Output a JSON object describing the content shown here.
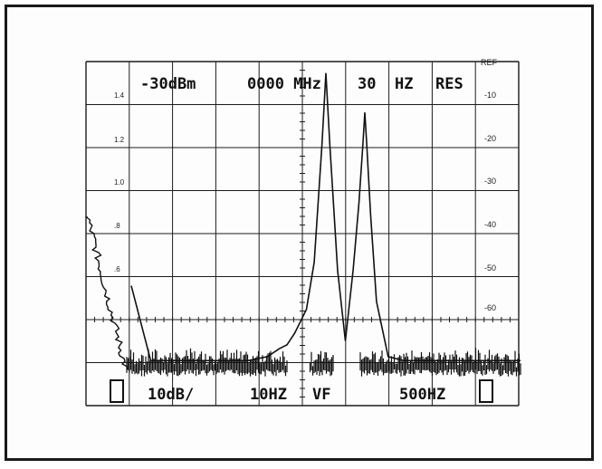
{
  "chart_data": {
    "type": "line",
    "readout_top": [
      "-30dBm",
      "0000 MHz",
      "30",
      "HZ",
      "RES"
    ],
    "readout_bottom": [
      "10dB/",
      "10HZ",
      "VF",
      "500HZ"
    ],
    "left_axis": {
      "ticks": [
        "1.4",
        "1.2",
        "1.0",
        ".8",
        ".6"
      ]
    },
    "right_axis": {
      "label": "REF",
      "ticks": [
        "-10",
        "-20",
        "-30",
        "-40",
        "-50",
        "-60"
      ]
    },
    "grid": "on",
    "divisions": {
      "x": 10,
      "y": 8
    },
    "x": [
      -5.0,
      -4.5,
      -4.0,
      -3.5,
      -3.0,
      -2.5,
      -2.0,
      -1.5,
      -1.2,
      -1.0,
      -0.8,
      -0.5,
      -0.3,
      -0.2,
      -0.1,
      0.0,
      0.1,
      0.2,
      0.3,
      0.5,
      0.7,
      0.85,
      0.95,
      1.0,
      1.05,
      1.15,
      1.3,
      1.6,
      2.0,
      2.5,
      3.0,
      3.5,
      4.0,
      4.5,
      5.0
    ],
    "y": [
      -56,
      -75,
      -75,
      -75,
      -75,
      -75,
      -75,
      -74,
      -72,
      -71,
      -68,
      -62,
      -50,
      -35,
      -20,
      -2,
      -20,
      -36,
      -52,
      -70,
      -52,
      -35,
      -20,
      -12,
      -20,
      -38,
      -60,
      -74,
      -75,
      -75,
      -75,
      -75,
      -75,
      -75,
      -75
    ],
    "xlim": [
      -5,
      5
    ],
    "ylim": [
      -80,
      0
    ]
  },
  "colors": {
    "trace": "#111111",
    "grid": "#1c1c1c",
    "frame": "#1a1a1a"
  }
}
